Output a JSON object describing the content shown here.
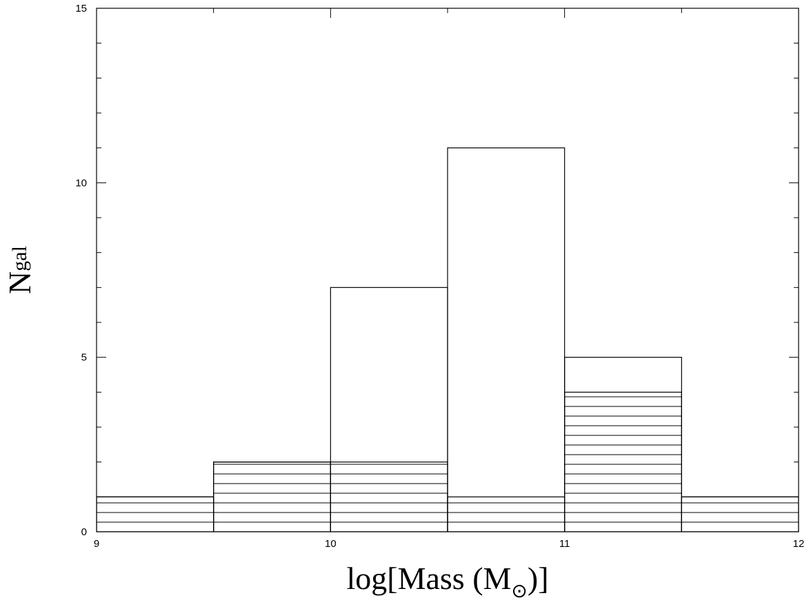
{
  "chart_data": {
    "type": "bar",
    "xlabel_main": "log[Mass (M",
    "xlabel_sub": "⊙",
    "xlabel_close": ")]",
    "ylabel_main": "N",
    "ylabel_sub": "gal",
    "xlim": [
      9,
      12
    ],
    "ylim": [
      0,
      15
    ],
    "xticks": [
      9,
      10,
      11,
      12
    ],
    "yticks": [
      0,
      5,
      10,
      15
    ],
    "x_minor_step": 0.5,
    "y_minor_step": 1,
    "bin_edges": [
      9,
      9.5,
      10,
      10.5,
      11,
      11.5,
      12
    ],
    "series": [
      {
        "style": "open",
        "values": [
          1,
          2,
          7,
          11,
          5,
          1
        ]
      },
      {
        "style": "hatched",
        "values": [
          1,
          2,
          2,
          1,
          4,
          1
        ]
      }
    ],
    "grid": false,
    "legend": "none"
  },
  "colors": {
    "line": "#000000",
    "background": "#ffffff"
  }
}
